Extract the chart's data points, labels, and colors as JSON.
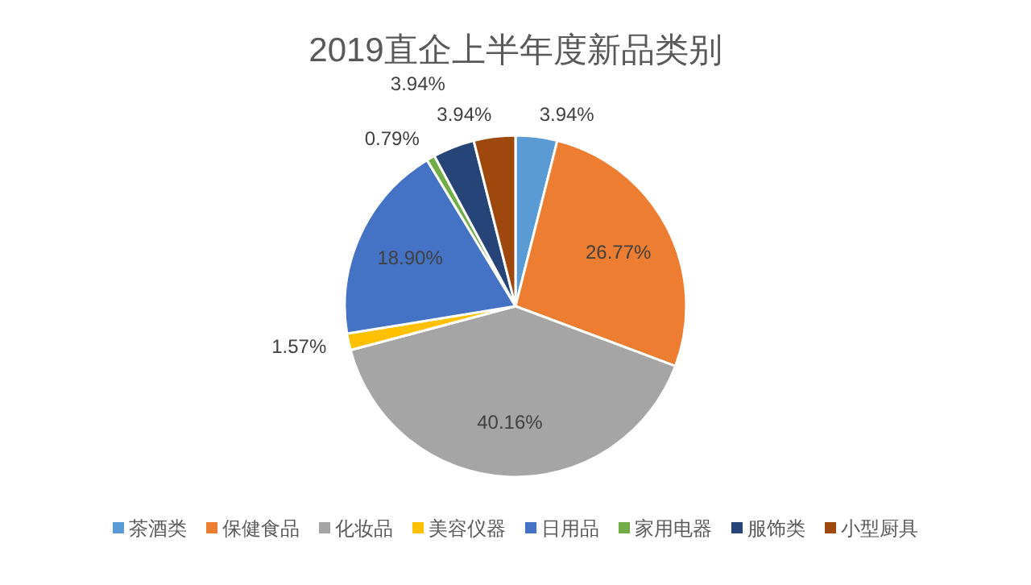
{
  "chart_data": {
    "type": "pie",
    "title": "2019直企上半年度新品类别",
    "categories": [
      "茶酒类",
      "保健食品",
      "化妆品",
      "美容仪器",
      "日用品",
      "家用电器",
      "服饰类",
      "小型厨具"
    ],
    "values": [
      3.94,
      26.77,
      40.16,
      1.57,
      18.9,
      0.79,
      3.94,
      3.94
    ],
    "value_labels": [
      "3.94%",
      "26.77%",
      "40.16%",
      "1.57%",
      "18.90%",
      "0.79%",
      "3.94%",
      "3.94%"
    ],
    "colors": [
      "#5b9bd5",
      "#ed7d31",
      "#a5a5a5",
      "#ffc000",
      "#4472c4",
      "#70ad47",
      "#264478",
      "#9e480e"
    ],
    "legend": "bottom"
  }
}
